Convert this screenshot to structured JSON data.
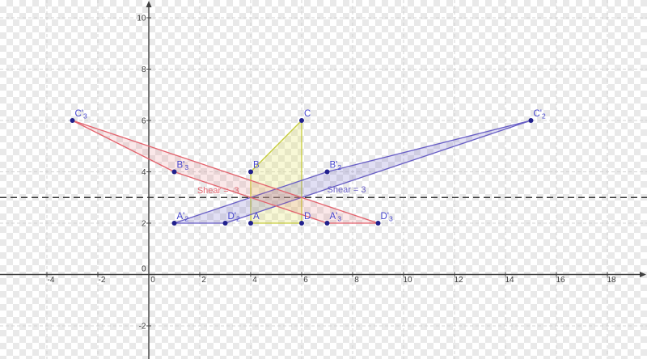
{
  "figure_kind": "geometry shear transformation plot",
  "colors": {
    "axis": "#404040",
    "tick_label": "#3c3c3c",
    "grid": "#d4d4d4",
    "shear_line": "#383838",
    "point_dot": "#20208c",
    "point_label": "#4545cd",
    "original_stroke": "#c6cc3d",
    "original_fill": "rgba(228,228,90,0.25)",
    "shear_pos_stroke": "#675dc6",
    "shear_pos_fill": "rgba(103,93,198,0.20)",
    "shear_neg_stroke": "#e4626d",
    "shear_neg_fill": "rgba(228,98,109,0.15)"
  },
  "chart_data": {
    "type": "scatter",
    "grid": true,
    "xlim": [
      -5.8,
      19.6
    ],
    "ylim": [
      -3.3,
      10.7
    ],
    "x_ticks": [
      -4,
      -2,
      0,
      2,
      4,
      6,
      8,
      10,
      12,
      14,
      16,
      18
    ],
    "y_ticks": [
      -2,
      0,
      2,
      4,
      6,
      8,
      10
    ],
    "shear_line": {
      "y": 3,
      "style": "dashed"
    },
    "points": [
      {
        "id": "A",
        "label": "A",
        "sub": "",
        "x": 4,
        "y": 2
      },
      {
        "id": "B",
        "label": "B",
        "sub": "",
        "x": 4,
        "y": 4
      },
      {
        "id": "C",
        "label": "C",
        "sub": "",
        "x": 6,
        "y": 6
      },
      {
        "id": "D",
        "label": "D",
        "sub": "",
        "x": 6,
        "y": 2
      },
      {
        "id": "A2",
        "label": "A'",
        "sub": "2",
        "x": 1,
        "y": 2
      },
      {
        "id": "B2",
        "label": "B'",
        "sub": "2",
        "x": 7,
        "y": 4
      },
      {
        "id": "C2",
        "label": "C'",
        "sub": "2",
        "x": 15,
        "y": 6
      },
      {
        "id": "D2",
        "label": "D'",
        "sub": "2",
        "x": 3,
        "y": 2
      },
      {
        "id": "A3",
        "label": "A'",
        "sub": "3",
        "x": 7,
        "y": 2
      },
      {
        "id": "B3",
        "label": "B'",
        "sub": "3",
        "x": 1,
        "y": 4
      },
      {
        "id": "C3",
        "label": "C'",
        "sub": "3",
        "x": -3,
        "y": 6
      },
      {
        "id": "D3",
        "label": "D'",
        "sub": "3",
        "x": 9,
        "y": 2
      }
    ],
    "polygons": [
      {
        "id": "original",
        "points": [
          "A",
          "B",
          "C",
          "D"
        ]
      },
      {
        "id": "shear-positive",
        "points": [
          "A2",
          "B2",
          "C2",
          "D2"
        ]
      },
      {
        "id": "shear-negative",
        "points": [
          "A3",
          "B3",
          "C3",
          "D3"
        ]
      }
    ],
    "annotations": [
      {
        "text": "Shear = -3",
        "x": 1.9,
        "y": 3.1,
        "series": "shear-negative"
      },
      {
        "text": "Shear = 3",
        "x": 7.0,
        "y": 3.12,
        "series": "shear-positive"
      }
    ]
  }
}
